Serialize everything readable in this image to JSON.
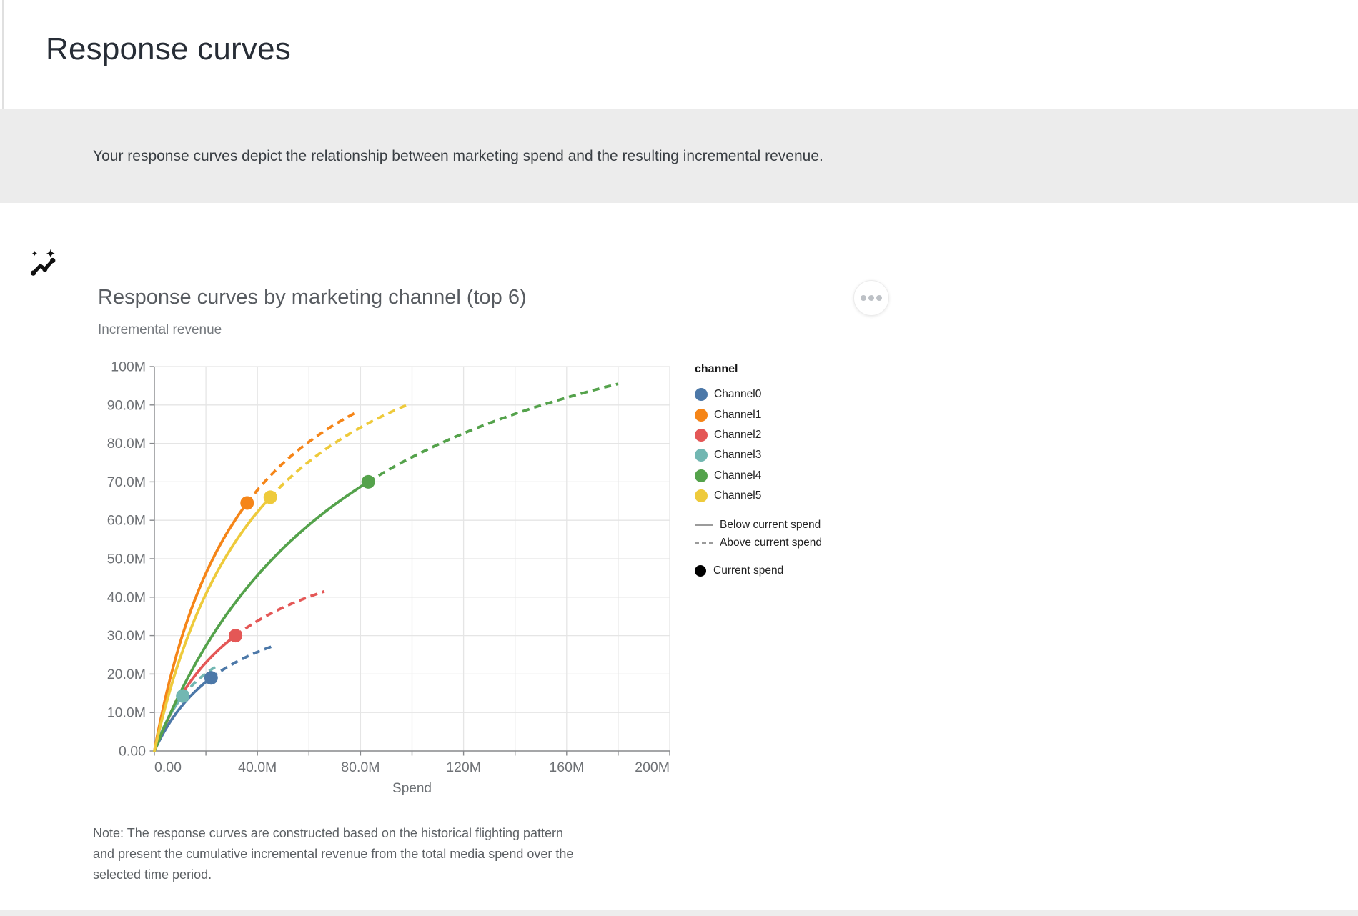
{
  "page": {
    "title": "Response curves",
    "banner": {
      "icon": "insights-sparkline-icon",
      "text": "Your response curves depict the relationship between marketing spend and the resulting incremental revenue."
    },
    "note_lines": [
      "Note: The response curves are constructed based on the historical flighting pattern",
      "and present the cumulative incremental revenue from the total media spend over the",
      "selected time period."
    ]
  },
  "icons": {
    "banner": "insights-sparkline-icon",
    "more_menu": "more-horizontal-icon"
  },
  "chart_data": {
    "type": "line",
    "title": "Response curves by marketing channel (top 6)",
    "xlabel": "Spend",
    "ylabel": "Incremental revenue",
    "x_unit": "currency, millions",
    "xlim": [
      0,
      200
    ],
    "ylim": [
      0,
      100
    ],
    "x_grid_step": 20,
    "y_grid_step": 10,
    "grid": true,
    "x_ticks": [
      {
        "value": 0,
        "label": "0.00"
      },
      {
        "value": 40,
        "label": "40.0M"
      },
      {
        "value": 80,
        "label": "80.0M"
      },
      {
        "value": 120,
        "label": "120M"
      },
      {
        "value": 160,
        "label": "160M"
      },
      {
        "value": 200,
        "label": "200M"
      }
    ],
    "y_ticks": [
      {
        "value": 0,
        "label": "0.00"
      },
      {
        "value": 10,
        "label": "10.0M"
      },
      {
        "value": 20,
        "label": "20.0M"
      },
      {
        "value": 30,
        "label": "30.0M"
      },
      {
        "value": 40,
        "label": "40.0M"
      },
      {
        "value": 50,
        "label": "50.0M"
      },
      {
        "value": 60,
        "label": "60.0M"
      },
      {
        "value": 70,
        "label": "70.0M"
      },
      {
        "value": 80,
        "label": "80.0M"
      },
      {
        "value": 90,
        "label": "90.0M"
      },
      {
        "value": 100,
        "label": "100M"
      }
    ],
    "series": [
      {
        "name": "Channel0",
        "color": "#4c78a8",
        "current_spend": 22,
        "current_revenue": 19,
        "max_spend": 47,
        "max_revenue": 27.5
      },
      {
        "name": "Channel1",
        "color": "#f58518",
        "current_spend": 36,
        "current_revenue": 64.5,
        "max_spend": 79,
        "max_revenue": 88.3
      },
      {
        "name": "Channel2",
        "color": "#e45756",
        "current_spend": 31.5,
        "current_revenue": 30,
        "max_spend": 66,
        "max_revenue": 41.5
      },
      {
        "name": "Channel3",
        "color": "#72b7b2",
        "current_spend": 11,
        "current_revenue": 14.3,
        "max_spend": 24,
        "max_revenue": 22
      },
      {
        "name": "Channel4",
        "color": "#54a24b",
        "current_spend": 83,
        "current_revenue": 70,
        "max_spend": 180,
        "max_revenue": 95.5
      },
      {
        "name": "Channel5",
        "color": "#eeca3b",
        "current_spend": 45,
        "current_revenue": 66,
        "max_spend": 98,
        "max_revenue": 90
      }
    ],
    "legend": {
      "title": "channel",
      "solid_label": "Below current spend",
      "dashed_label": "Above current spend",
      "dot_label": "Current spend",
      "line_color": "#9b9b9b",
      "dot_color": "#000000"
    },
    "legend_position": "right",
    "style": {
      "grid_color": "#e5e5e5",
      "axis_color": "#87898c",
      "tick_label_color": "#6e7175",
      "axis_title_color": "#6b6f73"
    }
  }
}
